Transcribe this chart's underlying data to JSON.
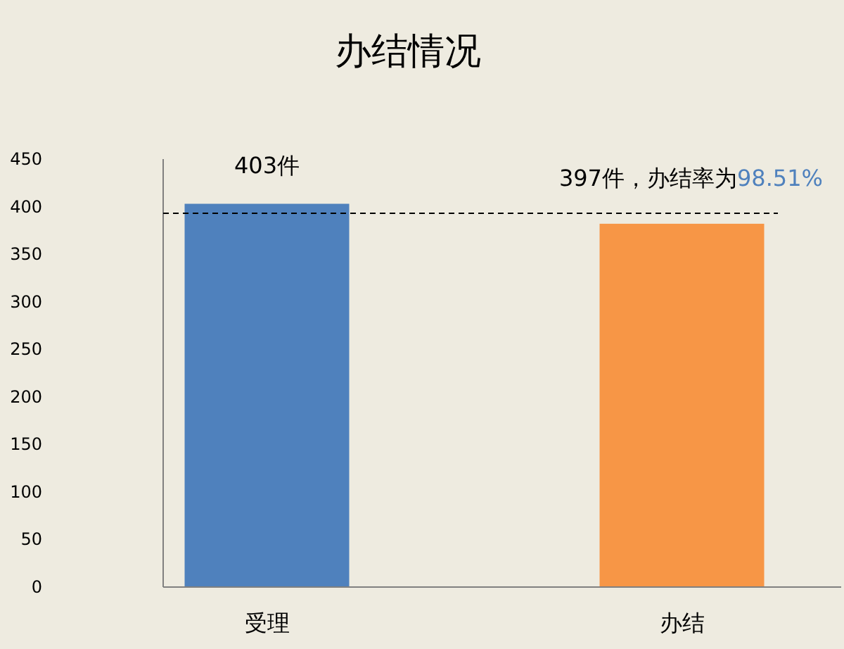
{
  "chart_data": {
    "type": "bar",
    "title": "办结情况",
    "categories": [
      "受理",
      "办结"
    ],
    "series": [
      {
        "colors": [
          "#4f81bd",
          "#f79646"
        ],
        "values": [
          403,
          382
        ]
      }
    ],
    "value_labels": [
      "403件",
      null
    ],
    "ylim": [
      0,
      450
    ],
    "yticks": [
      0,
      50,
      100,
      150,
      200,
      250,
      300,
      350,
      400,
      450
    ],
    "ref_lines": [
      {
        "axis": "y",
        "value": 393,
        "line_style": "dashed",
        "color": "#000000"
      }
    ],
    "annotations": [
      "397件，办结率为",
      "98.51%"
    ],
    "grid": false
  }
}
